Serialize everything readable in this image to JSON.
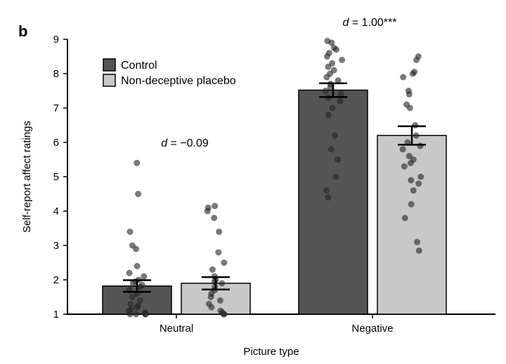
{
  "panel_label": "b",
  "chart_data": {
    "type": "bar",
    "title": "",
    "xlabel": "Picture type",
    "ylabel": "Self-report affect ratings",
    "categories": [
      "Neutral",
      "Negative"
    ],
    "ylim": [
      1,
      9
    ],
    "yticks": [
      "1",
      "2",
      "3",
      "4",
      "5",
      "6",
      "7",
      "8",
      "9"
    ],
    "grid": false,
    "legend_position": "top-left",
    "series": [
      {
        "name": "Control",
        "color": "#555555",
        "values": [
          1.82,
          7.52
        ],
        "error": [
          0.17,
          0.2
        ],
        "points": [
          [
            5.4,
            4.5,
            3.4,
            3.0,
            2.9,
            2.4,
            2.2,
            2.1,
            2.0,
            1.95,
            1.9,
            1.85,
            1.8,
            1.7,
            1.6,
            1.5,
            1.4,
            1.3,
            1.25,
            1.2,
            1.15,
            1.1,
            1.05,
            1.0,
            1.0,
            1.0,
            1.0
          ],
          [
            8.95,
            8.9,
            8.75,
            8.7,
            8.6,
            8.5,
            8.4,
            8.3,
            8.2,
            8.1,
            8.0,
            7.9,
            7.8,
            7.7,
            7.6,
            7.5,
            7.4,
            7.3,
            7.2,
            7.0,
            6.8,
            6.2,
            5.8,
            5.5,
            5.0,
            4.6,
            4.4
          ]
        ]
      },
      {
        "name": "Non-deceptive placebo",
        "color": "#c8c8c8",
        "values": [
          1.9,
          6.2
        ],
        "error": [
          0.18,
          0.27
        ],
        "points": [
          [
            4.15,
            4.1,
            4.0,
            3.8,
            3.4,
            2.8,
            2.5,
            2.3,
            2.1,
            2.0,
            1.95,
            1.9,
            1.8,
            1.7,
            1.6,
            1.5,
            1.4,
            1.3,
            1.2,
            1.1,
            1.05,
            1.0,
            1.0
          ],
          [
            8.5,
            8.4,
            8.05,
            8.0,
            7.9,
            7.5,
            7.4,
            7.1,
            7.0,
            6.5,
            6.2,
            6.0,
            5.9,
            5.8,
            5.6,
            5.5,
            5.4,
            5.3,
            5.0,
            4.9,
            4.8,
            4.6,
            4.2,
            3.8,
            3.1,
            2.85
          ]
        ]
      }
    ],
    "annotations": [
      {
        "italic": "d",
        "text": " = −0.09",
        "category": "Neutral"
      },
      {
        "italic": "d",
        "text": " = 1.00***",
        "category": "Negative"
      }
    ]
  }
}
